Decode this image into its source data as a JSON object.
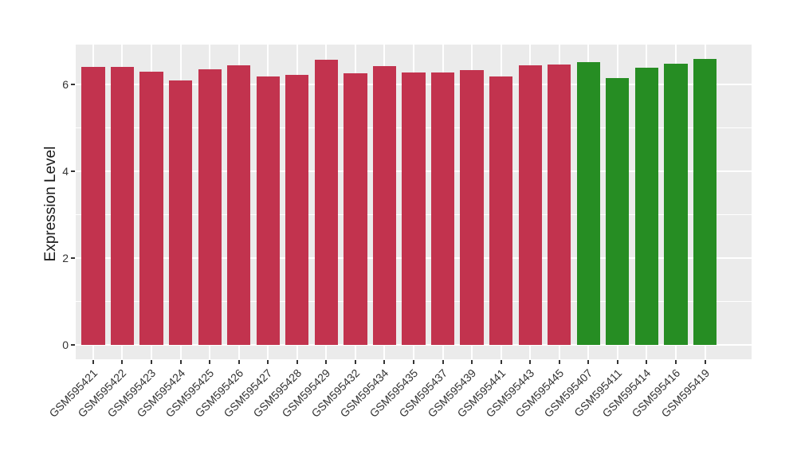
{
  "chart_data": {
    "type": "bar",
    "title": "",
    "xlabel": "",
    "ylabel": "Expression Level",
    "legend_position": "none",
    "grid": true,
    "panel_bg": "#EBEBEB",
    "grid_color": "#FFFFFF",
    "axis_text_color": "#333333",
    "ylim": [
      0,
      6.92
    ],
    "yticks": [
      0,
      2,
      4,
      6
    ],
    "yticks_minor": [
      1,
      3,
      5
    ],
    "categories": [
      "GSM595421",
      "GSM595422",
      "GSM595423",
      "GSM595424",
      "GSM595425",
      "GSM595426",
      "GSM595427",
      "GSM595428",
      "GSM595429",
      "GSM595432",
      "GSM595434",
      "GSM595435",
      "GSM595437",
      "GSM595439",
      "GSM595441",
      "GSM595443",
      "GSM595445",
      "GSM595407",
      "GSM595411",
      "GSM595414",
      "GSM595416",
      "GSM595419"
    ],
    "values": [
      6.4,
      6.41,
      6.29,
      6.1,
      6.35,
      6.44,
      6.18,
      6.22,
      6.57,
      6.25,
      6.43,
      6.28,
      6.27,
      6.33,
      6.18,
      6.44,
      6.45,
      6.51,
      6.14,
      6.38,
      6.48,
      6.58
    ],
    "colors": [
      "#C2334E",
      "#C2334E",
      "#C2334E",
      "#C2334E",
      "#C2334E",
      "#C2334E",
      "#C2334E",
      "#C2334E",
      "#C2334E",
      "#C2334E",
      "#C2334E",
      "#C2334E",
      "#C2334E",
      "#C2334E",
      "#C2334E",
      "#C2334E",
      "#C2334E",
      "#268D23",
      "#268D23",
      "#268D23",
      "#268D23",
      "#268D23"
    ],
    "group_colors": {
      "red_group": "#C2334E",
      "green_group": "#268D23"
    }
  }
}
